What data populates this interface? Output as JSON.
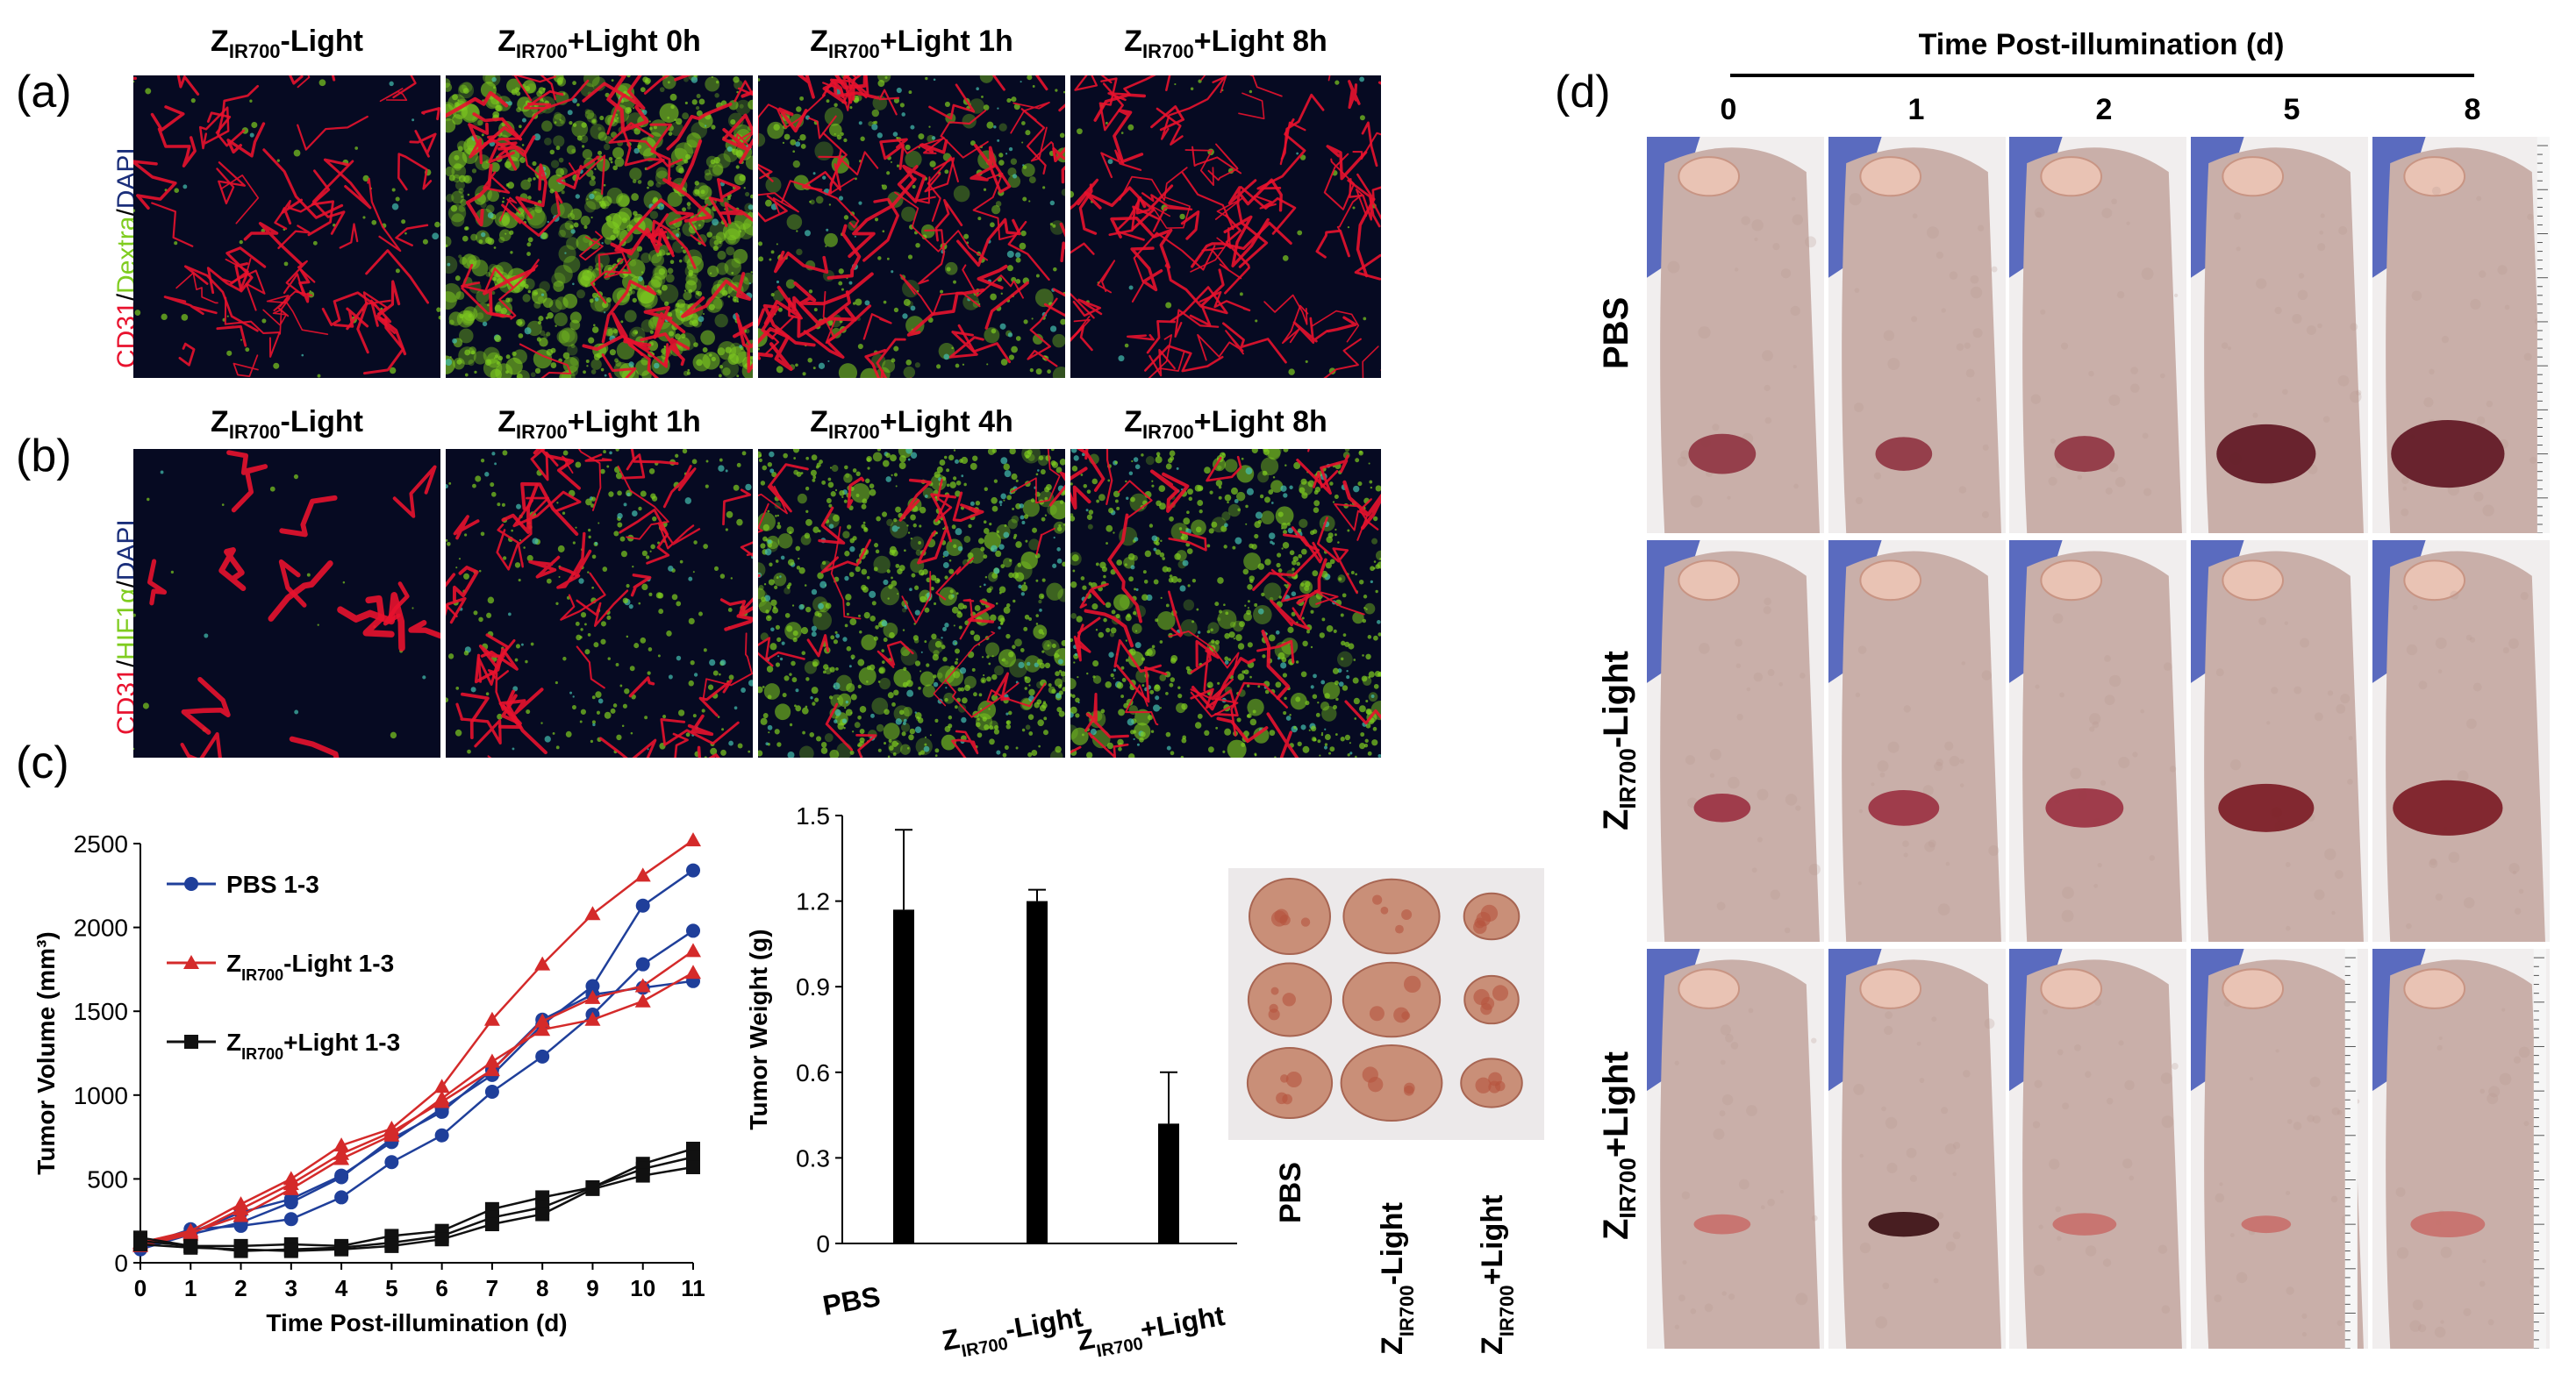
{
  "panels": {
    "a": "(a)",
    "b": "(b)",
    "c": "(c)",
    "d": "(d)"
  },
  "row_a": {
    "stain": [
      "CD31",
      "/",
      "Dextra",
      "/",
      "DAPI"
    ],
    "columns": [
      {
        "main": "Z",
        "sub": "IR700",
        "rest": "-Light"
      },
      {
        "main": "Z",
        "sub": "IR700",
        "rest": "+Light 0h"
      },
      {
        "main": "Z",
        "sub": "IR700",
        "rest": "+Light 1h"
      },
      {
        "main": "Z",
        "sub": "IR700",
        "rest": "+Light 8h"
      }
    ]
  },
  "row_b": {
    "stain": [
      "CD31",
      "/",
      "HIF1α",
      "/",
      "DAPI"
    ],
    "columns": [
      {
        "main": "Z",
        "sub": "IR700",
        "rest": "-Light"
      },
      {
        "main": "Z",
        "sub": "IR700",
        "rest": "+Light 1h"
      },
      {
        "main": "Z",
        "sub": "IR700",
        "rest": "+Light 4h"
      },
      {
        "main": "Z",
        "sub": "IR700",
        "rest": "+Light 8h"
      }
    ]
  },
  "colors": {
    "red": "#e8122e",
    "green": "#7fcc1f",
    "blue": "#1a2e7a",
    "pbs": "#1f3f9a",
    "zminus": "#d42a2a",
    "zplus": "#111111"
  },
  "chart_data": [
    {
      "type": "line",
      "xlabel": "Time Post-illumination  (d)",
      "ylabel": "Tumor Volume  (mm³)",
      "xlim": [
        0,
        11
      ],
      "ylim": [
        0,
        2500
      ],
      "x_ticks": [
        "0",
        "1",
        "2",
        "3",
        "4",
        "5",
        "6",
        "7",
        "8",
        "9",
        "10",
        "11"
      ],
      "y_ticks": [
        "0",
        "500",
        "1000",
        "1500",
        "2000",
        "2500"
      ],
      "x": [
        0,
        1,
        2,
        3,
        4,
        5,
        6,
        7,
        8,
        9,
        10,
        11
      ],
      "legend": [
        {
          "main": "PBS 1-3",
          "sub": "",
          "rest": "",
          "color": "#1f3f9a",
          "marker": "circle"
        },
        {
          "main": "Z",
          "sub": "IR700",
          "rest": "-Light 1-3",
          "color": "#d42a2a",
          "marker": "triangle"
        },
        {
          "main": "Z",
          "sub": "IR700",
          "rest": "+Light 1-3",
          "color": "#111111",
          "marker": "square"
        }
      ],
      "series": [
        {
          "group": 0,
          "values": [
            100,
            200,
            220,
            260,
            390,
            600,
            760,
            1020,
            1230,
            1480,
            1780,
            1980
          ]
        },
        {
          "group": 0,
          "values": [
            90,
            180,
            300,
            380,
            520,
            720,
            920,
            1120,
            1420,
            1650,
            2130,
            2340
          ]
        },
        {
          "group": 0,
          "values": [
            80,
            170,
            240,
            360,
            510,
            740,
            900,
            1150,
            1450,
            1600,
            1640,
            1680
          ]
        },
        {
          "group": 1,
          "values": [
            120,
            190,
            350,
            500,
            700,
            800,
            1050,
            1450,
            1780,
            2080,
            2310,
            2520
          ]
        },
        {
          "group": 1,
          "values": [
            110,
            180,
            280,
            440,
            620,
            760,
            980,
            1200,
            1390,
            1450,
            1560,
            1730
          ]
        },
        {
          "group": 1,
          "values": [
            100,
            170,
            320,
            470,
            650,
            780,
            960,
            1150,
            1440,
            1580,
            1650,
            1860
          ]
        },
        {
          "group": 2,
          "values": [
            150,
            100,
            100,
            110,
            100,
            160,
            190,
            320,
            390,
            450,
            590,
            680
          ]
        },
        {
          "group": 2,
          "values": [
            130,
            100,
            70,
            80,
            90,
            120,
            160,
            270,
            330,
            450,
            560,
            630
          ]
        },
        {
          "group": 2,
          "values": [
            110,
            90,
            80,
            70,
            80,
            100,
            140,
            230,
            290,
            440,
            520,
            570
          ]
        }
      ]
    },
    {
      "type": "bar",
      "ylabel": "Tumor Weight (g)",
      "ylim": [
        0,
        1.5
      ],
      "y_ticks": [
        "0",
        "0.3",
        "0.6",
        "0.9",
        "1.2",
        "1.5"
      ],
      "categories": [
        {
          "main": "PBS",
          "sub": "",
          "rest": ""
        },
        {
          "main": "Z",
          "sub": "IR700",
          "rest": "-Light"
        },
        {
          "main": "Z",
          "sub": "IR700",
          "rest": "+Light"
        }
      ],
      "values": [
        1.17,
        1.2,
        0.42
      ],
      "errors": [
        0.28,
        0.04,
        0.18
      ]
    }
  ],
  "tumor_photo": {
    "labels": [
      {
        "main": "PBS",
        "sub": "",
        "rest": ""
      },
      {
        "main": "Z",
        "sub": "IR700",
        "rest": "-Light"
      },
      {
        "main": "Z",
        "sub": "IR700",
        "rest": "+Light"
      }
    ]
  },
  "panel_d": {
    "title": "Time Post-illumination  (d)",
    "days": [
      "0",
      "1",
      "2",
      "5",
      "8"
    ],
    "rows": [
      {
        "main": "PBS",
        "sub": "",
        "rest": ""
      },
      {
        "main": "Z",
        "sub": "IR700",
        "rest": "-Light"
      },
      {
        "main": "Z",
        "sub": "IR700",
        "rest": "+Light"
      }
    ]
  }
}
